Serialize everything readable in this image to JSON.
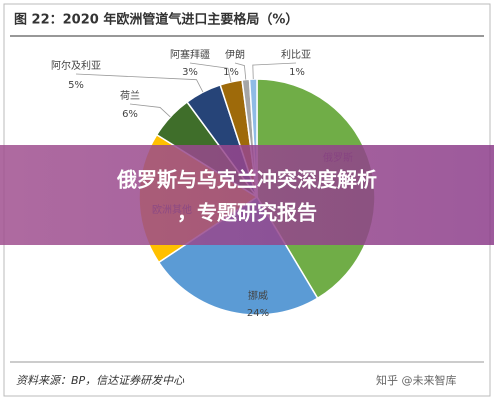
{
  "chart_data": {
    "type": "pie",
    "title": "图 22：2020 年欧洲管道气进口主要格局（%）",
    "categories": [
      "俄罗斯",
      "挪威",
      "欧洲其他",
      "荷兰",
      "阿尔及利亚",
      "阿塞拜疆",
      "伊朗",
      "利比亚"
    ],
    "values": [
      41,
      24,
      18,
      6,
      5,
      3,
      1,
      1
    ],
    "value_labels": [
      null,
      "24%",
      null,
      "6%",
      "5%",
      "3%",
      "1%",
      "1%"
    ],
    "colors": [
      "#70ad47",
      "#5b9bd5",
      "#ffc000",
      "#3f6e2a",
      "#264478",
      "#9e6a0a",
      "#a5a5a5",
      "#8fbbe6"
    ],
    "source": "资料来源：BP，信达证券研发中心"
  },
  "banner": {
    "lines": [
      "俄罗斯与乌克兰冲突深度解析",
      "，专题研究报告"
    ]
  },
  "watermark": "知乎 @未来智库"
}
